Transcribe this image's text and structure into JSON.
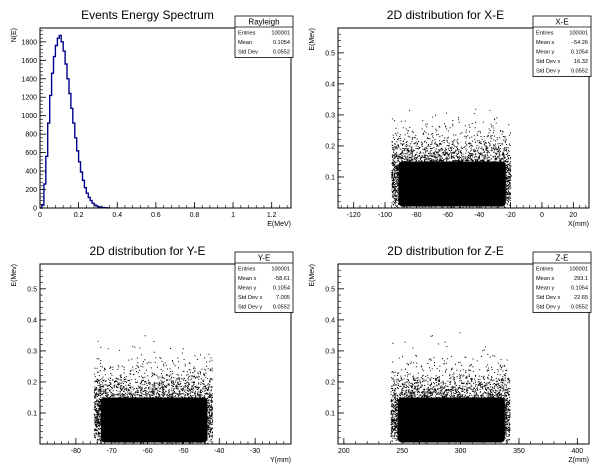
{
  "canvas_background": "#ffffff",
  "hist_color": "#00008b",
  "scatter_color": "#000000",
  "chart_data": [
    {
      "type": "line",
      "title": "Events Energy Spectrum",
      "xlabel": "E(MeV)",
      "ylabel": "N(E)",
      "xlim": [
        0,
        1.3
      ],
      "ylim": [
        0,
        1950
      ],
      "xticks": [
        0,
        0.2,
        0.4,
        0.6,
        0.8,
        1,
        1.2
      ],
      "xtick_labels": [
        "0",
        "0.2",
        "0.4",
        "0.6",
        "0.8",
        "1",
        "1.2"
      ],
      "yticks": [
        0,
        200,
        400,
        600,
        800,
        1000,
        1200,
        1400,
        1600,
        1800
      ],
      "ytick_labels": [
        "0",
        "200",
        "400",
        "600",
        "800",
        "1000",
        "1200",
        "1400",
        "1600",
        "1800"
      ],
      "grid": false,
      "stats": {
        "name": "Rayleigh",
        "rows": [
          {
            "label": "Entries",
            "value": "100001"
          },
          {
            "label": "Mean",
            "value": "0.1054"
          },
          {
            "label": "Std Dev",
            "value": "0.0552"
          }
        ]
      },
      "x": [
        0.0,
        0.01,
        0.02,
        0.03,
        0.04,
        0.05,
        0.06,
        0.07,
        0.08,
        0.09,
        0.1,
        0.11,
        0.12,
        0.13,
        0.14,
        0.15,
        0.16,
        0.17,
        0.18,
        0.19,
        0.2,
        0.21,
        0.22,
        0.23,
        0.24,
        0.25,
        0.26,
        0.27,
        0.28,
        0.29,
        0.3,
        0.31,
        0.32,
        0.33,
        0.34,
        0.35,
        0.36
      ],
      "y": [
        0,
        30,
        260,
        560,
        920,
        1220,
        1460,
        1640,
        1760,
        1840,
        1870,
        1800,
        1700,
        1560,
        1400,
        1240,
        1080,
        920,
        760,
        620,
        500,
        390,
        300,
        220,
        160,
        115,
        80,
        52,
        34,
        22,
        13,
        8,
        5,
        3,
        2,
        1,
        0
      ]
    },
    {
      "type": "scatter",
      "title": "2D distribution for X-E",
      "xlabel": "X(mm)",
      "ylabel": "E(Mev)",
      "xlim": [
        -130,
        30
      ],
      "ylim": [
        0,
        0.58
      ],
      "xticks": [
        -120,
        -100,
        -80,
        -60,
        -40,
        -20,
        0,
        20
      ],
      "xtick_labels": [
        "-120",
        "-100",
        "-80",
        "-60",
        "-40",
        "-20",
        "0",
        "20"
      ],
      "yticks": [
        0.1,
        0.2,
        0.3,
        0.4,
        0.5
      ],
      "ytick_labels": [
        "0.1",
        "0.2",
        "0.3",
        "0.4",
        "0.5"
      ],
      "grid": false,
      "stats": {
        "name": "X-E",
        "rows": [
          {
            "label": "Entries",
            "value": "100001"
          },
          {
            "label": "Mean x",
            "value": "-54.26"
          },
          {
            "label": "Mean y",
            "value": "0.1054"
          },
          {
            "label": "Std Dev x",
            "value": "16.32"
          },
          {
            "label": "Std Dev y",
            "value": "0.0552"
          }
        ]
      },
      "x_range": [
        -96,
        -20
      ]
    },
    {
      "type": "scatter",
      "title": "2D distribution for Y-E",
      "xlabel": "Y(mm)",
      "ylabel": "E(Mev)",
      "xlim": [
        -90,
        -20
      ],
      "ylim": [
        0,
        0.58
      ],
      "xticks": [
        -80,
        -70,
        -60,
        -50,
        -40,
        -30
      ],
      "xtick_labels": [
        "-80",
        "-70",
        "-60",
        "-50",
        "-40",
        "-30"
      ],
      "yticks": [
        0.1,
        0.2,
        0.3,
        0.4,
        0.5
      ],
      "ytick_labels": [
        "0.1",
        "0.2",
        "0.3",
        "0.4",
        "0.5"
      ],
      "grid": false,
      "stats": {
        "name": "Y-E",
        "rows": [
          {
            "label": "Entries",
            "value": "100001"
          },
          {
            "label": "Mean x",
            "value": "-58.61"
          },
          {
            "label": "Mean y",
            "value": "0.1054"
          },
          {
            "label": "Std Dev x",
            "value": "7.005"
          },
          {
            "label": "Std Dev y",
            "value": "0.0552"
          }
        ]
      },
      "x_range": [
        -75,
        -42
      ]
    },
    {
      "type": "scatter",
      "title": "2D distribution for Z-E",
      "xlabel": "Z(mm)",
      "ylabel": "E(Mev)",
      "xlim": [
        195,
        410
      ],
      "ylim": [
        0,
        0.58
      ],
      "xticks": [
        200,
        250,
        300,
        350,
        400
      ],
      "xtick_labels": [
        "200",
        "250",
        "300",
        "350",
        "400"
      ],
      "yticks": [
        0.1,
        0.2,
        0.3,
        0.4,
        0.5
      ],
      "ytick_labels": [
        "0.1",
        "0.2",
        "0.3",
        "0.4",
        "0.5"
      ],
      "grid": false,
      "stats": {
        "name": "Z-E",
        "rows": [
          {
            "label": "Entries",
            "value": "100001"
          },
          {
            "label": "Mean x",
            "value": "293.1"
          },
          {
            "label": "Mean y",
            "value": "0.1054"
          },
          {
            "label": "Std Dev x",
            "value": "22.65"
          },
          {
            "label": "Std Dev y",
            "value": "0.0552"
          }
        ]
      },
      "x_range": [
        240,
        342
      ]
    }
  ]
}
